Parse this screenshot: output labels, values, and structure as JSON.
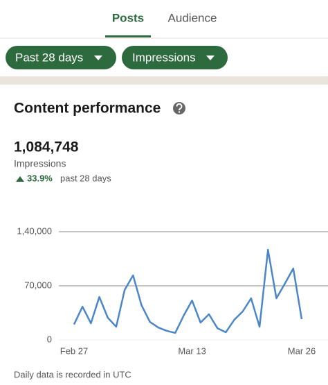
{
  "tabs": [
    "Posts",
    "Audience"
  ],
  "filters": [
    "Past 28 days",
    "Impressions"
  ],
  "section_title": "Content performance",
  "total": "1,084,748",
  "metric": "Impressions",
  "change": "33.9%",
  "change_period": "past 28 days",
  "footnote": "Daily data is recorded in UTC",
  "chart_data": {
    "type": "line",
    "categories": [
      "Feb 27",
      null,
      null,
      null,
      null,
      null,
      null,
      null,
      null,
      null,
      null,
      null,
      null,
      null,
      "Mar 13",
      null,
      null,
      null,
      null,
      null,
      null,
      null,
      null,
      null,
      null,
      null,
      null,
      "Mar 26"
    ],
    "series": [
      {
        "name": "Impressions",
        "color": "#4a86c8",
        "values": [
          20000,
          43000,
          21500,
          55600,
          28700,
          17000,
          64600,
          83500,
          44900,
          23300,
          16000,
          11700,
          9000,
          31400,
          51000,
          22400,
          33200,
          15200,
          9900,
          26000,
          36800,
          53800,
          17000,
          116700,
          53800,
          72700,
          92400,
          26900
        ]
      }
    ],
    "ylim": [
      0,
      140000
    ],
    "yticks": [
      0,
      {
        "value": 70000,
        "label": "70,000"
      },
      {
        "value": 140000,
        "label": "1,40,000"
      }
    ],
    "grid": true
  }
}
